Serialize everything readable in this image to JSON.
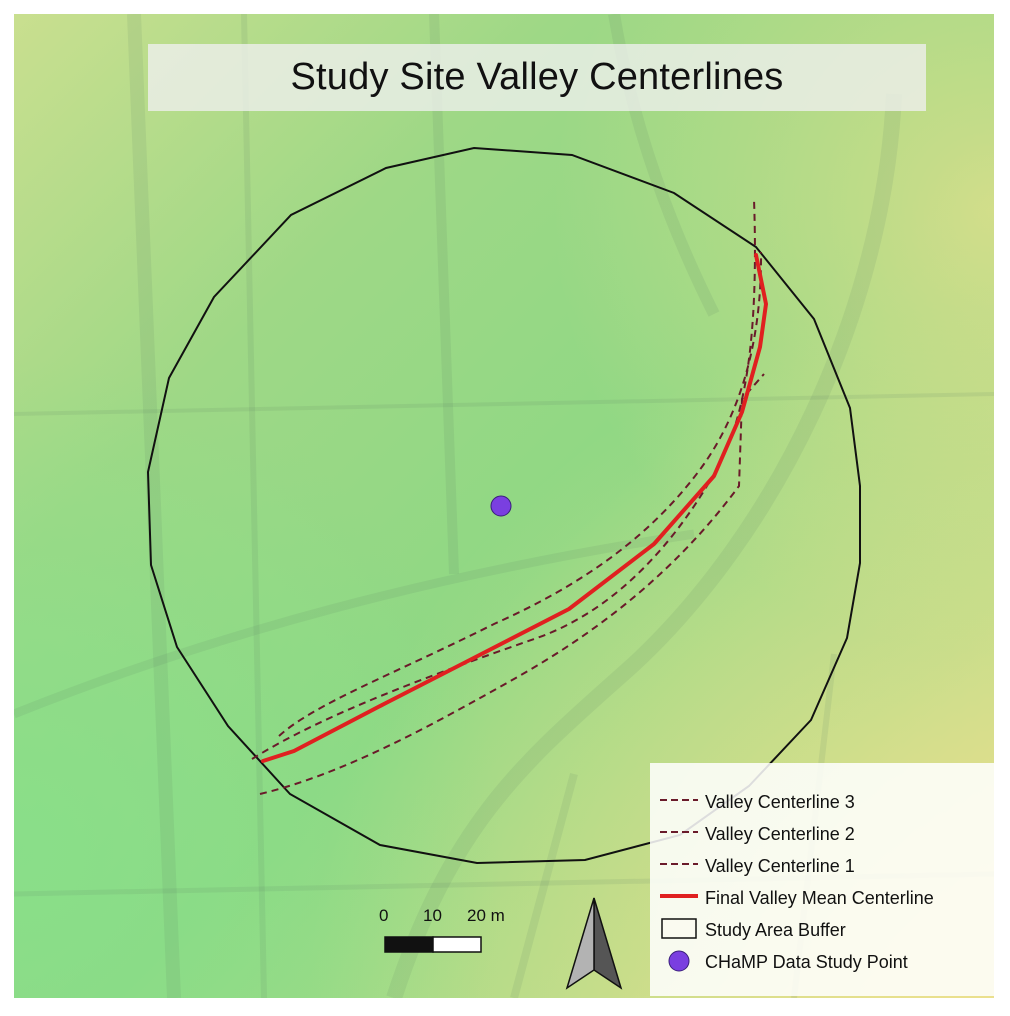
{
  "map": {
    "title": "Study Site Valley Centerlines",
    "colors": {
      "background_green": "#8fd884",
      "background_yellow": "#e1e08a",
      "buffer_outline": "#111111",
      "mean_centerline": "#e02020",
      "valley_centerline": "#6a1a2a",
      "study_point": "#7a3fe0"
    }
  },
  "legend": {
    "items": [
      {
        "label": "Valley Centerline 3",
        "symbol": "dashed-line"
      },
      {
        "label": "Valley Centerline 2",
        "symbol": "dashed-line"
      },
      {
        "label": "Valley Centerline 1",
        "symbol": "dashed-line"
      },
      {
        "label": "Final Valley Mean Centerline",
        "symbol": "solid-red-line"
      },
      {
        "label": "Study Area Buffer",
        "symbol": "outline-box"
      },
      {
        "label": "CHaMP Data Study Point",
        "symbol": "purple-circle"
      }
    ]
  },
  "scalebar": {
    "ticks": [
      "0",
      "10",
      "20 m"
    ]
  },
  "north_arrow": {
    "icon": "north-arrow-icon"
  }
}
